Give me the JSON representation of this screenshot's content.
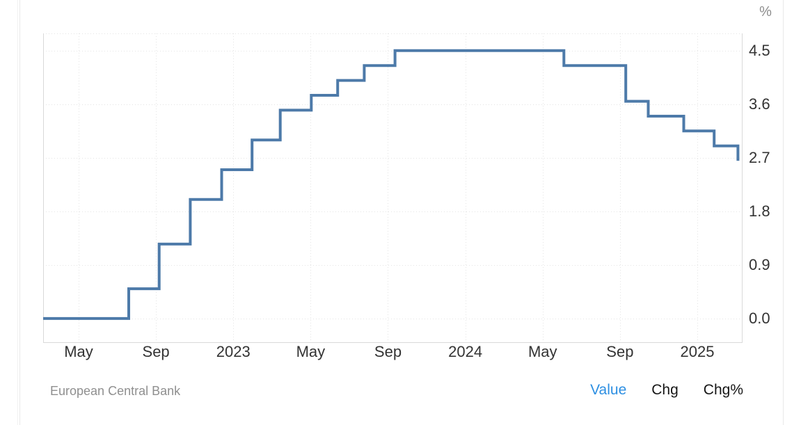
{
  "chart_data": {
    "type": "line",
    "subtype": "step",
    "unit": "%",
    "grid": "dotted",
    "line_color": "#4d7aa9",
    "y_range": [
      -0.41,
      4.79
    ],
    "y_ticks": [
      "0.0",
      "0.9",
      "1.8",
      "2.7",
      "3.6",
      "4.5"
    ],
    "x_ticks": [
      {
        "label": "May",
        "month": "2022-05"
      },
      {
        "label": "Sep",
        "month": "2022-09"
      },
      {
        "label": "2023",
        "month": "2023-01"
      },
      {
        "label": "May",
        "month": "2023-05"
      },
      {
        "label": "Sep",
        "month": "2023-09"
      },
      {
        "label": "2024",
        "month": "2024-01"
      },
      {
        "label": "May",
        "month": "2024-05"
      },
      {
        "label": "Sep",
        "month": "2024-09"
      },
      {
        "label": "2025",
        "month": "2025-01"
      }
    ],
    "series": [
      {
        "points": [
          {
            "date": "2022-03-01",
            "value": 0.0
          },
          {
            "date": "2022-07-27",
            "value": 0.5
          },
          {
            "date": "2022-09-14",
            "value": 1.25
          },
          {
            "date": "2022-11-02",
            "value": 2.0
          },
          {
            "date": "2022-12-21",
            "value": 2.5
          },
          {
            "date": "2023-02-08",
            "value": 3.0
          },
          {
            "date": "2023-03-22",
            "value": 3.5
          },
          {
            "date": "2023-05-10",
            "value": 3.75
          },
          {
            "date": "2023-06-21",
            "value": 4.0
          },
          {
            "date": "2023-08-02",
            "value": 4.25
          },
          {
            "date": "2023-09-20",
            "value": 4.5
          },
          {
            "date": "2024-06-12",
            "value": 4.25
          },
          {
            "date": "2024-09-18",
            "value": 3.65
          },
          {
            "date": "2024-10-23",
            "value": 3.4
          },
          {
            "date": "2024-12-18",
            "value": 3.15
          },
          {
            "date": "2025-02-05",
            "value": 2.9
          },
          {
            "date": "2025-03-12",
            "value": 2.65
          }
        ]
      }
    ]
  },
  "footer": {
    "source": "European Central Bank",
    "links": [
      {
        "label": "Value",
        "active": true
      },
      {
        "label": "Chg",
        "active": false
      },
      {
        "label": "Chg%",
        "active": false
      }
    ]
  },
  "colors": {
    "line": "#4d7aa9",
    "grid": "#e4e4e4",
    "border": "#d9d9d9",
    "tick_text": "#333333",
    "active_link": "#2d8fe2"
  }
}
